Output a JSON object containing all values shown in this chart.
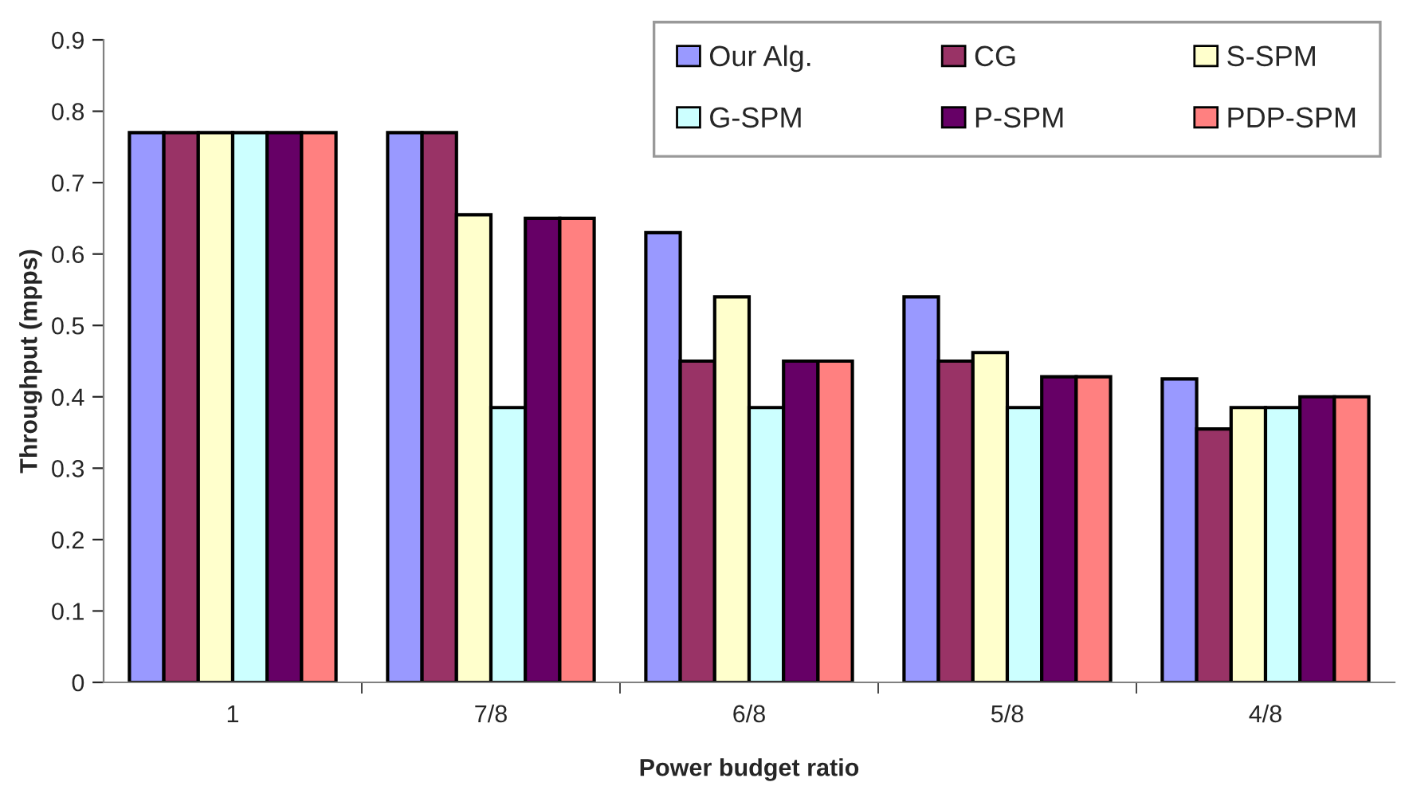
{
  "chart_data": {
    "type": "bar",
    "xlabel": "Power budget ratio",
    "ylabel": "Throughput (mpps)",
    "categories": [
      "1",
      "7/8",
      "6/8",
      "5/8",
      "4/8"
    ],
    "series": [
      {
        "name": "Our Alg.",
        "color": "#9999ff",
        "values": [
          0.77,
          0.77,
          0.63,
          0.54,
          0.425
        ]
      },
      {
        "name": "CG",
        "color": "#993366",
        "values": [
          0.77,
          0.77,
          0.45,
          0.45,
          0.355
        ]
      },
      {
        "name": "S-SPM",
        "color": "#ffffcc",
        "values": [
          0.77,
          0.655,
          0.54,
          0.462,
          0.385
        ]
      },
      {
        "name": "G-SPM",
        "color": "#ccffff",
        "values": [
          0.77,
          0.385,
          0.385,
          0.385,
          0.385
        ]
      },
      {
        "name": "P-SPM",
        "color": "#660066",
        "values": [
          0.77,
          0.65,
          0.45,
          0.428,
          0.4
        ]
      },
      {
        "name": "PDP-SPM",
        "color": "#ff8080",
        "values": [
          0.77,
          0.65,
          0.45,
          0.428,
          0.4
        ]
      }
    ],
    "ylim": [
      0,
      0.9
    ],
    "yticks": [
      0,
      0.1,
      0.2,
      0.3,
      0.4,
      0.5,
      0.6,
      0.7,
      0.8,
      0.9
    ],
    "grid": false,
    "legend": "top right"
  }
}
